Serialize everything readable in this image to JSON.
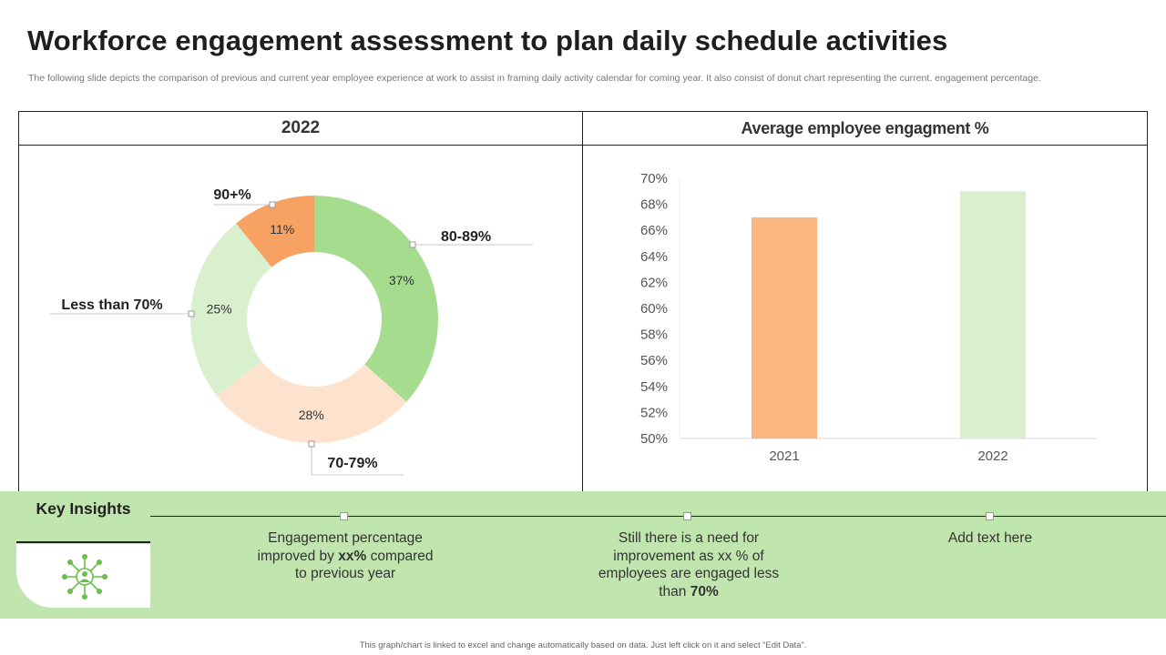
{
  "title": "Workforce engagement assessment to plan daily schedule activities",
  "subtitle": "The following slide depicts the comparison of previous and current year employee experience at work to assist in framing daily activity  calendar for coming year. It also consist of donut chart representing the current. engagement percentage.",
  "left_panel": {
    "heading": "2022"
  },
  "right_panel": {
    "heading": "Average employee engagment %"
  },
  "chart_data": [
    {
      "type": "pie",
      "subtype": "donut",
      "title": "2022",
      "slices": [
        {
          "label": "80-89%",
          "value": 37,
          "value_label": "37%",
          "color": "#a6dc8e"
        },
        {
          "label": "70-79%",
          "value": 28,
          "value_label": "28%",
          "color": "#fde3cd"
        },
        {
          "label": "Less than 70%",
          "value": 25,
          "value_label": "25%",
          "color": "#d9f0cf"
        },
        {
          "label": "90+%",
          "value": 11,
          "value_label": "11%",
          "color": "#f7a162"
        }
      ]
    },
    {
      "type": "bar",
      "title": "Average employee engagment %",
      "categories": [
        "2021",
        "2022"
      ],
      "values": [
        67,
        69
      ],
      "colors": [
        "#fbb680",
        "#d9f0cf"
      ],
      "ylim": [
        50,
        70
      ],
      "yticks": [
        "50%",
        "52%",
        "54%",
        "56%",
        "58%",
        "60%",
        "62%",
        "64%",
        "66%",
        "68%",
        "70%"
      ],
      "xlabel": "",
      "ylabel": ""
    }
  ],
  "insights": {
    "heading": "Key Insights",
    "icon": "engagement-network-icon",
    "accent_color": "#6abf4b",
    "items": [
      {
        "pre": "Engagement percentage improved by ",
        "bold": "xx%",
        "post": " compared to previous year"
      },
      {
        "pre": "Still there is a need for improvement  as xx % of employees are engaged less than ",
        "bold": "70%",
        "post": ""
      },
      {
        "pre": "Add text here",
        "bold": "",
        "post": ""
      }
    ]
  },
  "footer": "This graph/chart is linked to excel and change automatically based on data. Just left click on it and select “Edit Data”."
}
